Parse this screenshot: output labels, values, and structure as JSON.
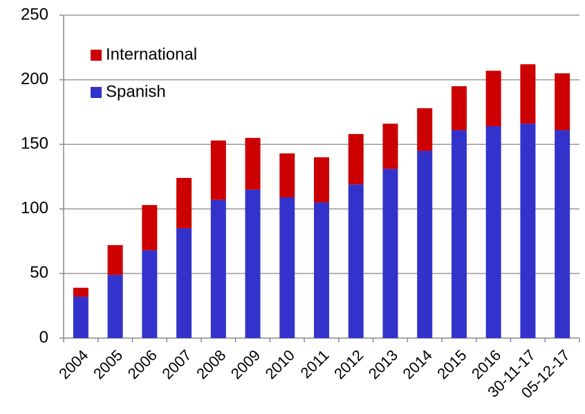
{
  "chart_data": {
    "type": "stacked_bar",
    "categories": [
      "2004",
      "2005",
      "2006",
      "2007",
      "2008",
      "2009",
      "2010",
      "2011",
      "2012",
      "2013",
      "2014",
      "2015",
      "2016",
      "30-11-17",
      "05-12-17"
    ],
    "series": [
      {
        "name": "Spanish",
        "color": "#3333cc",
        "values": [
          32,
          49,
          68,
          85,
          107,
          115,
          109,
          105,
          119,
          131,
          145,
          161,
          164,
          166,
          161
        ]
      },
      {
        "name": "International",
        "color": "#cc0000",
        "values": [
          7,
          23,
          35,
          39,
          46,
          40,
          34,
          35,
          39,
          35,
          33,
          34,
          43,
          46,
          44
        ]
      }
    ],
    "ylim": [
      0,
      250
    ],
    "yticks": [
      0,
      50,
      100,
      150,
      200,
      250
    ],
    "grid": true,
    "legend": "upper left"
  }
}
